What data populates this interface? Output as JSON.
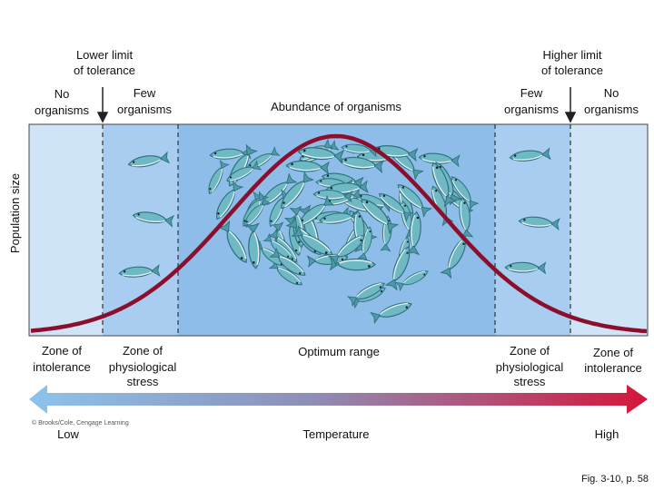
{
  "top_labels": {
    "lower_limit": [
      "Lower limit",
      "of tolerance"
    ],
    "higher_limit": [
      "Higher limit",
      "of tolerance"
    ]
  },
  "abundance_labels": [
    [
      "No",
      "organisms"
    ],
    [
      "Few",
      "organisms"
    ],
    [
      "Abundance of organisms"
    ],
    [
      "Few",
      "organisms"
    ],
    [
      "No",
      "organisms"
    ]
  ],
  "y_axis_label": "Population size",
  "zones": [
    [
      "Zone of",
      "intolerance"
    ],
    [
      "Zone of",
      "physiological",
      "stress"
    ],
    [
      "Optimum range"
    ],
    [
      "Zone of",
      "physiological",
      "stress"
    ],
    [
      "Zone of",
      "intolerance"
    ]
  ],
  "temperature_axis": {
    "low": "Low",
    "label": "Temperature",
    "high": "High"
  },
  "credit": "© Brooks/Cole, Cengage Learning",
  "figure_ref": "Fig. 3-10, p. 58"
}
